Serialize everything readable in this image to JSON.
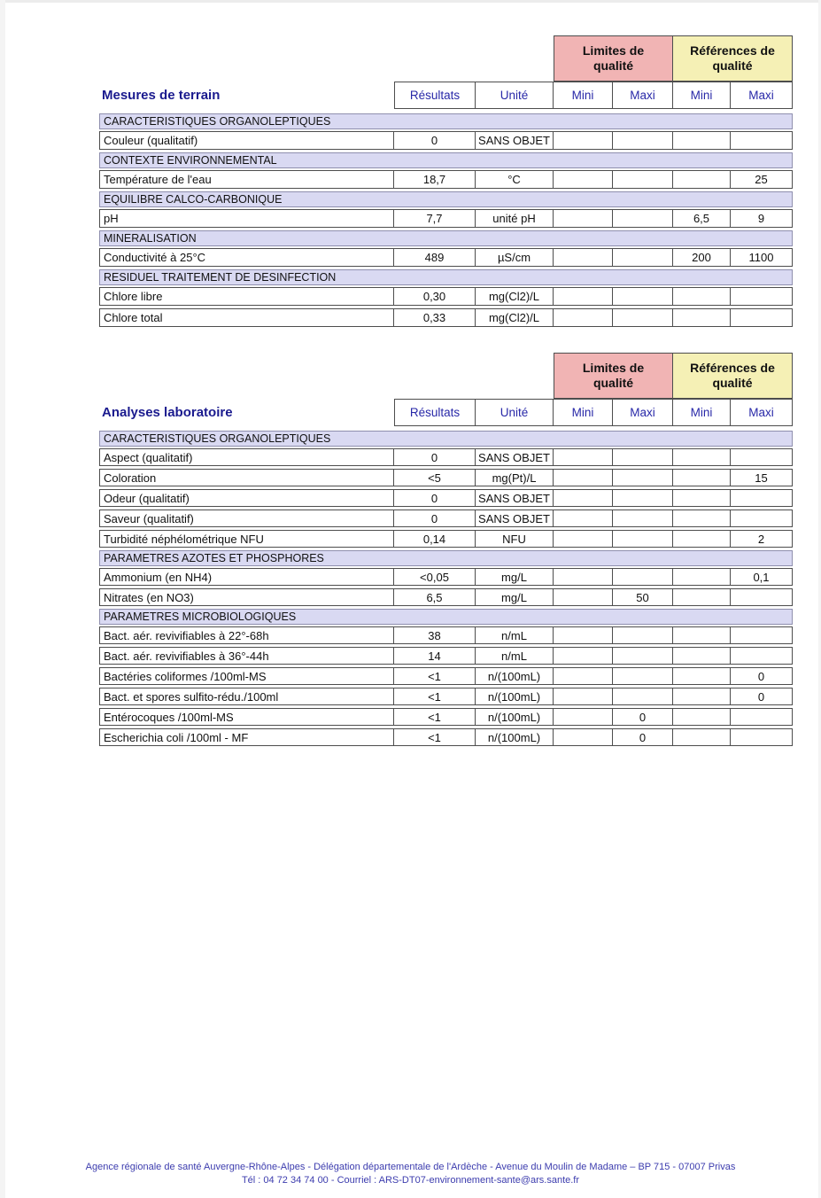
{
  "colors": {
    "limits_bg": "#f1b4b4",
    "references_bg": "#f5f0b5",
    "section_bg": "#d9d9f2",
    "column_header_text": "#2828a8",
    "title_text": "#1a1a8e",
    "footer_text": "#3c3cae"
  },
  "header_labels": {
    "limits": "Limites de qualité",
    "references": "Références de qualité",
    "results": "Résultats",
    "unit": "Unité",
    "mini": "Mini",
    "maxi": "Maxi"
  },
  "tables": [
    {
      "title": "Mesures de terrain",
      "rows": [
        {
          "type": "section",
          "label": "CARACTERISTIQUES ORGANOLEPTIQUES"
        },
        {
          "type": "data",
          "param": "Couleur (qualitatif)",
          "result": "0",
          "unit": "SANS OBJET",
          "lmin": "",
          "lmax": "",
          "rmin": "",
          "rmax": ""
        },
        {
          "type": "section",
          "label": "CONTEXTE ENVIRONNEMENTAL"
        },
        {
          "type": "data",
          "param": "Température de l'eau",
          "result": "18,7",
          "unit": "°C",
          "lmin": "",
          "lmax": "",
          "rmin": "",
          "rmax": "25"
        },
        {
          "type": "section",
          "label": "EQUILIBRE CALCO-CARBONIQUE"
        },
        {
          "type": "data",
          "param": "pH",
          "result": "7,7",
          "unit": "unité pH",
          "lmin": "",
          "lmax": "",
          "rmin": "6,5",
          "rmax": "9"
        },
        {
          "type": "section",
          "label": "MINERALISATION"
        },
        {
          "type": "data",
          "param": "Conductivité à 25°C",
          "result": "489",
          "unit": "µS/cm",
          "lmin": "",
          "lmax": "",
          "rmin": "200",
          "rmax": "1100"
        },
        {
          "type": "section",
          "label": "RESIDUEL TRAITEMENT DE DESINFECTION"
        },
        {
          "type": "data",
          "param": "Chlore libre",
          "result": "0,30",
          "unit": "mg(Cl2)/L",
          "lmin": "",
          "lmax": "",
          "rmin": "",
          "rmax": ""
        },
        {
          "type": "data",
          "param": "Chlore total",
          "result": "0,33",
          "unit": "mg(Cl2)/L",
          "lmin": "",
          "lmax": "",
          "rmin": "",
          "rmax": ""
        }
      ]
    },
    {
      "title": "Analyses laboratoire",
      "rows": [
        {
          "type": "section",
          "label": "CARACTERISTIQUES ORGANOLEPTIQUES"
        },
        {
          "type": "data",
          "param": "Aspect (qualitatif)",
          "result": "0",
          "unit": "SANS OBJET",
          "lmin": "",
          "lmax": "",
          "rmin": "",
          "rmax": ""
        },
        {
          "type": "data",
          "param": "Coloration",
          "result": "<5",
          "unit": "mg(Pt)/L",
          "lmin": "",
          "lmax": "",
          "rmin": "",
          "rmax": "15"
        },
        {
          "type": "data",
          "param": "Odeur (qualitatif)",
          "result": "0",
          "unit": "SANS OBJET",
          "lmin": "",
          "lmax": "",
          "rmin": "",
          "rmax": ""
        },
        {
          "type": "data",
          "param": "Saveur (qualitatif)",
          "result": "0",
          "unit": "SANS OBJET",
          "lmin": "",
          "lmax": "",
          "rmin": "",
          "rmax": ""
        },
        {
          "type": "data",
          "param": "Turbidité néphélométrique NFU",
          "result": "0,14",
          "unit": "NFU",
          "lmin": "",
          "lmax": "",
          "rmin": "",
          "rmax": "2"
        },
        {
          "type": "section",
          "label": "PARAMETRES AZOTES ET PHOSPHORES"
        },
        {
          "type": "data",
          "param": "Ammonium (en NH4)",
          "result": "<0,05",
          "unit": "mg/L",
          "lmin": "",
          "lmax": "",
          "rmin": "",
          "rmax": "0,1"
        },
        {
          "type": "data",
          "param": "Nitrates (en NO3)",
          "result": "6,5",
          "unit": "mg/L",
          "lmin": "",
          "lmax": "50",
          "rmin": "",
          "rmax": ""
        },
        {
          "type": "section",
          "label": "PARAMETRES MICROBIOLOGIQUES"
        },
        {
          "type": "data",
          "param": "Bact. aér. revivifiables à 22°-68h",
          "result": "38",
          "unit": "n/mL",
          "lmin": "",
          "lmax": "",
          "rmin": "",
          "rmax": ""
        },
        {
          "type": "data",
          "param": "Bact. aér. revivifiables à 36°-44h",
          "result": "14",
          "unit": "n/mL",
          "lmin": "",
          "lmax": "",
          "rmin": "",
          "rmax": ""
        },
        {
          "type": "data",
          "param": "Bactéries coliformes /100ml-MS",
          "result": "<1",
          "unit": "n/(100mL)",
          "lmin": "",
          "lmax": "",
          "rmin": "",
          "rmax": "0"
        },
        {
          "type": "data",
          "param": "Bact. et spores sulfito-rédu./100ml",
          "result": "<1",
          "unit": "n/(100mL)",
          "lmin": "",
          "lmax": "",
          "rmin": "",
          "rmax": "0"
        },
        {
          "type": "data",
          "param": "Entérocoques /100ml-MS",
          "result": "<1",
          "unit": "n/(100mL)",
          "lmin": "",
          "lmax": "0",
          "rmin": "",
          "rmax": ""
        },
        {
          "type": "data",
          "param": "Escherichia coli /100ml - MF",
          "result": "<1",
          "unit": "n/(100mL)",
          "lmin": "",
          "lmax": "0",
          "rmin": "",
          "rmax": ""
        }
      ]
    }
  ],
  "footer": {
    "line1": "Agence régionale de santé Auvergne-Rhône-Alpes - Délégation départementale de l'Ardèche - Avenue du Moulin de Madame – BP 715 - 07007 Privas",
    "line2": "Tél : 04 72 34 74 00 - Courriel : ARS-DT07-environnement-sante@ars.sante.fr"
  }
}
